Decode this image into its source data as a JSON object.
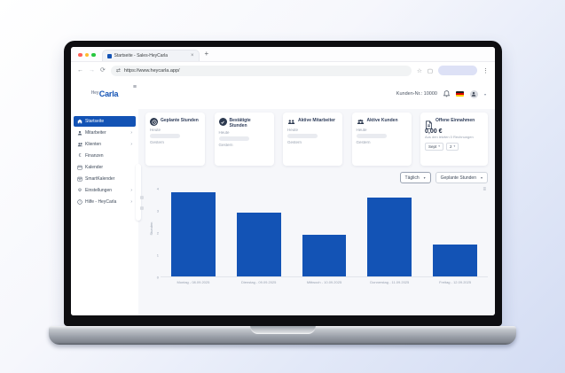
{
  "browser": {
    "tab_title": "Startseite - Sales-HeyCarla",
    "close_tab": "×",
    "new_tab": "+",
    "url": "https://www.heycarla.app/"
  },
  "header": {
    "logo_hey": "Hey",
    "logo_carla": "Carla",
    "customer_number": "Kunden-Nr.: 10000"
  },
  "sidebar": {
    "items": [
      {
        "label": "Startseite"
      },
      {
        "label": "Mitarbeiter"
      },
      {
        "label": "Klienten"
      },
      {
        "label": "Finanzen"
      },
      {
        "label": "Kalender"
      },
      {
        "label": "SmartKalender"
      },
      {
        "label": "Einstellungen"
      },
      {
        "label": "Hilfe - HeyCarla"
      }
    ]
  },
  "cards": [
    {
      "title": "Geplante Stunden",
      "today_label": "Heute",
      "yesterday_label": "Gestern"
    },
    {
      "title": "Bestätigte Stunden",
      "today_label": "Heute",
      "yesterday_label": "Gestern"
    },
    {
      "title": "Aktive Mitarbeiter",
      "today_label": "Heute",
      "yesterday_label": "Gestern"
    },
    {
      "title": "Aktive Kunden",
      "today_label": "Heute",
      "yesterday_label": "Gestern"
    }
  ],
  "revenue_card": {
    "title": "Offene Einnahmen",
    "amount": "0,00 €",
    "subtitle": "Aus den letzten 0 Rechnungen",
    "month_select": "Sept",
    "year_select": "2"
  },
  "chart_controls": {
    "interval_select": "Täglich",
    "metric_select": "Geplante Stunden"
  },
  "chart_data": {
    "type": "bar",
    "title": "",
    "xlabel": "",
    "ylabel": "Stunden",
    "categories": [
      "Montag - 08.09.2025",
      "Dienstag - 09.09.2025",
      "Mittwoch - 10.09.2025",
      "Donnerstag - 11.09.2025",
      "Freitag - 12.09.2025"
    ],
    "values": [
      3.85,
      2.9,
      1.9,
      3.6,
      1.45
    ],
    "yticks": [
      4,
      3,
      2,
      1,
      0
    ],
    "ylim": [
      0,
      4
    ],
    "bar_color": "#1353b5",
    "grid": false,
    "legend": "none"
  },
  "colors": {
    "primary": "#1353b5",
    "navy": "#2d3a50",
    "main_bg": "#f6f7fa"
  }
}
